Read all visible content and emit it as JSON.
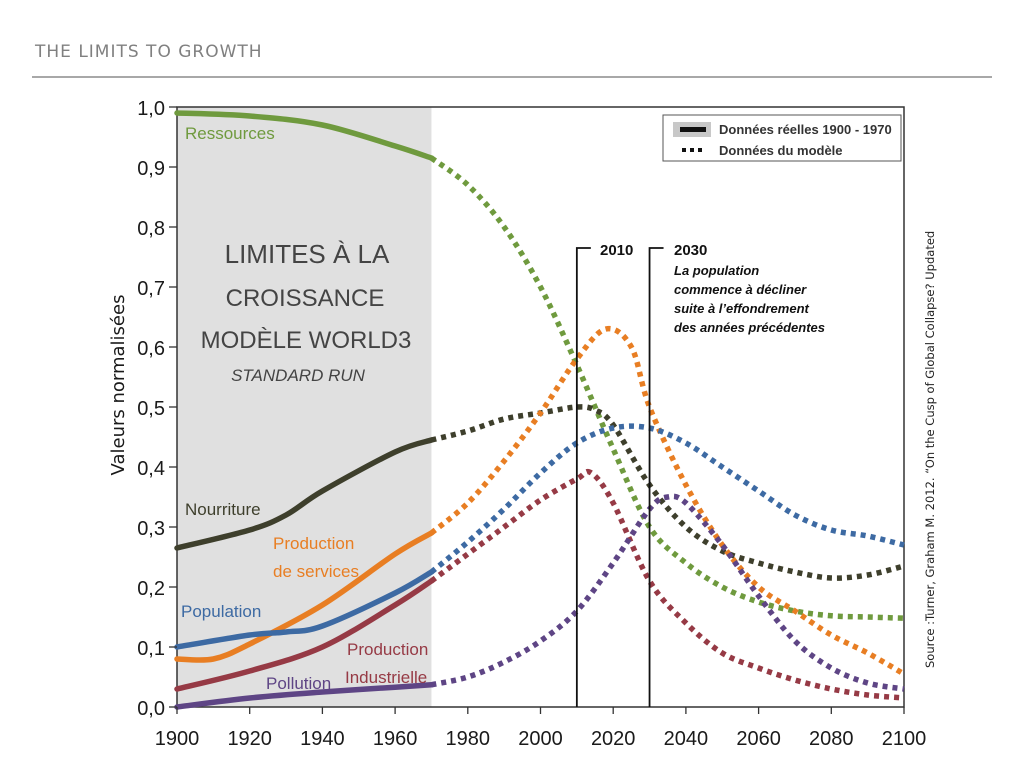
{
  "header": {
    "title": "THE LIMITS TO GROWTH"
  },
  "chart_data": {
    "type": "line",
    "title_lines": [
      "LIMITES À LA",
      "CROISSANCE",
      "MODÈLE WORLD3",
      "STANDARD RUN"
    ],
    "xlabel": "",
    "ylabel": "Valeurs normalisées",
    "xlim": [
      1900,
      2100
    ],
    "ylim": [
      0.0,
      1.0
    ],
    "x_ticks": [
      1900,
      1920,
      1940,
      1960,
      1980,
      2000,
      2020,
      2040,
      2060,
      2080,
      2100
    ],
    "x_tick_labels": [
      "1900",
      "1920",
      "1940",
      "1960",
      "1980",
      "2000",
      "2020",
      "2040",
      "2060",
      "2080",
      "2100"
    ],
    "y_ticks": [
      0.0,
      0.1,
      0.2,
      0.3,
      0.4,
      0.5,
      0.6,
      0.7,
      0.8,
      0.9,
      1.0
    ],
    "y_tick_labels": [
      "0,0",
      "0,1",
      "0,2",
      "0,3",
      "0,4",
      "0,5",
      "0,6",
      "0,7",
      "0,8",
      "0,9",
      "1,0"
    ],
    "grid": false,
    "observed_period": [
      1900,
      1970
    ],
    "legend": {
      "placement": "top-right",
      "entries": [
        {
          "label": "Données réelles 1900 - 1970",
          "style": "solid"
        },
        {
          "label": "Données du modèle",
          "style": "dotted"
        }
      ]
    },
    "annotations": [
      {
        "year": 2010,
        "label": "2010",
        "note_lines": []
      },
      {
        "year": 2030,
        "label": "2030",
        "note_lines": [
          "La population",
          "commence à décliner",
          "suite à l’effondrement",
          "des années précédentes"
        ]
      }
    ],
    "source": "Source :Turner, Graham M. 2012. “On the Cusp of Global Collapse? Updated",
    "series": [
      {
        "name": "Ressources",
        "label_lines": [
          "Ressources"
        ],
        "color": "#6f9a3e",
        "x": [
          1900,
          1920,
          1940,
          1960,
          1970,
          1980,
          1990,
          2000,
          2010,
          2020,
          2030,
          2040,
          2050,
          2060,
          2070,
          2080,
          2090,
          2100
        ],
        "values": [
          0.99,
          0.985,
          0.97,
          0.935,
          0.915,
          0.87,
          0.8,
          0.7,
          0.57,
          0.43,
          0.3,
          0.24,
          0.2,
          0.175,
          0.16,
          0.152,
          0.15,
          0.148
        ]
      },
      {
        "name": "Nourriture",
        "label_lines": [
          "Nourriture"
        ],
        "color": "#3e3f2c",
        "x": [
          1900,
          1920,
          1930,
          1940,
          1960,
          1970,
          1980,
          1990,
          2000,
          2010,
          2015,
          2020,
          2030,
          2040,
          2050,
          2060,
          2070,
          2080,
          2090,
          2100
        ],
        "values": [
          0.265,
          0.295,
          0.32,
          0.36,
          0.425,
          0.445,
          0.46,
          0.48,
          0.49,
          0.5,
          0.495,
          0.47,
          0.37,
          0.3,
          0.26,
          0.24,
          0.225,
          0.215,
          0.22,
          0.235
        ]
      },
      {
        "name": "Production de services",
        "label_lines": [
          "Production",
          "de services"
        ],
        "color": "#e87e23",
        "x": [
          1900,
          1910,
          1920,
          1940,
          1960,
          1970,
          1980,
          1990,
          2000,
          2010,
          2018,
          2025,
          2030,
          2040,
          2050,
          2060,
          2070,
          2080,
          2090,
          2100
        ],
        "values": [
          0.08,
          0.08,
          0.105,
          0.17,
          0.255,
          0.29,
          0.34,
          0.41,
          0.49,
          0.58,
          0.63,
          0.6,
          0.5,
          0.37,
          0.27,
          0.2,
          0.16,
          0.12,
          0.09,
          0.055
        ]
      },
      {
        "name": "Population",
        "label_lines": [
          "Population"
        ],
        "color": "#3d6aa3",
        "x": [
          1900,
          1920,
          1930,
          1940,
          1960,
          1970,
          1980,
          1990,
          2000,
          2010,
          2020,
          2030,
          2040,
          2050,
          2060,
          2070,
          2080,
          2090,
          2100
        ],
        "values": [
          0.1,
          0.12,
          0.125,
          0.135,
          0.19,
          0.225,
          0.275,
          0.33,
          0.39,
          0.44,
          0.465,
          0.465,
          0.44,
          0.4,
          0.36,
          0.32,
          0.295,
          0.285,
          0.27
        ]
      },
      {
        "name": "Production Industrielle",
        "label_lines": [
          "Production",
          "Industrielle"
        ],
        "color": "#963a45",
        "x": [
          1900,
          1920,
          1940,
          1960,
          1970,
          1980,
          1990,
          2000,
          2010,
          2014,
          2020,
          2030,
          2040,
          2050,
          2060,
          2070,
          2080,
          2090,
          2100
        ],
        "values": [
          0.03,
          0.06,
          0.1,
          0.17,
          0.21,
          0.255,
          0.3,
          0.345,
          0.38,
          0.39,
          0.34,
          0.21,
          0.14,
          0.09,
          0.065,
          0.045,
          0.03,
          0.02,
          0.015
        ]
      },
      {
        "name": "Pollution",
        "label_lines": [
          "Pollution"
        ],
        "color": "#5e4585",
        "x": [
          1900,
          1920,
          1940,
          1960,
          1970,
          1980,
          1990,
          2000,
          2010,
          2020,
          2030,
          2035,
          2040,
          2050,
          2060,
          2070,
          2080,
          2090,
          2100
        ],
        "values": [
          0.0,
          0.015,
          0.025,
          0.033,
          0.037,
          0.05,
          0.075,
          0.11,
          0.16,
          0.24,
          0.33,
          0.35,
          0.34,
          0.27,
          0.185,
          0.11,
          0.065,
          0.04,
          0.03
        ]
      }
    ]
  }
}
